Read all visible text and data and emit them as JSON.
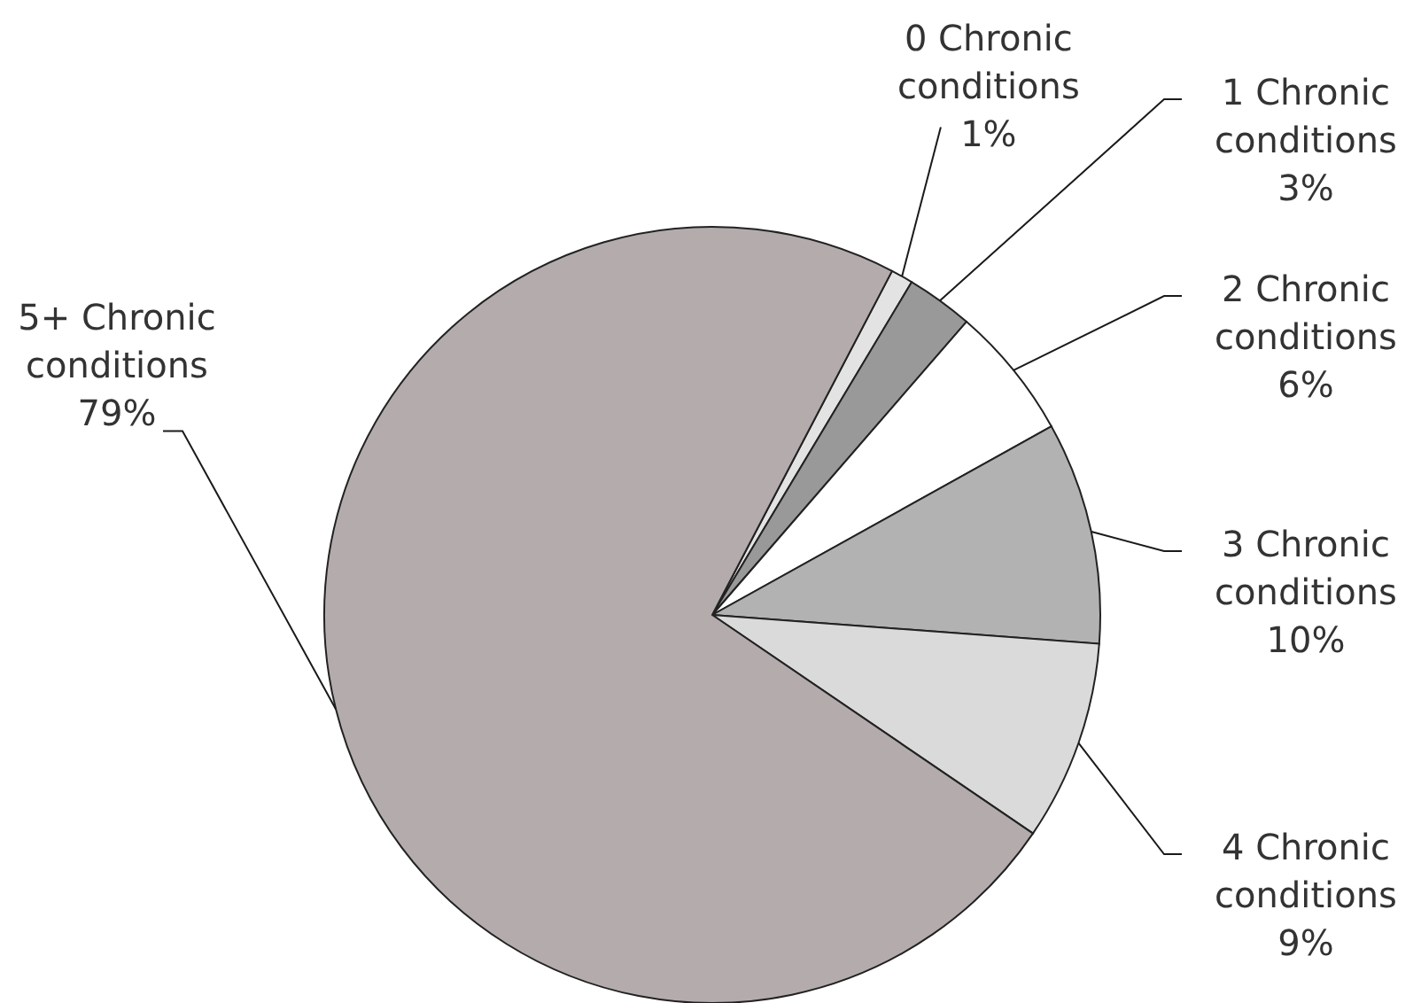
{
  "chart_data": {
    "type": "pie",
    "categories": [
      "0 Chronic conditions",
      "1 Chronic conditions",
      "2 Chronic conditions",
      "3 Chronic conditions",
      "4 Chronic conditions",
      "5+ Chronic conditions"
    ],
    "values": [
      1,
      3,
      6,
      10,
      9,
      79
    ],
    "value_labels": [
      "1%",
      "3%",
      "6%",
      "10%",
      "9%",
      "79%"
    ],
    "colors": [
      "#e3e3e3",
      "#999999",
      "#ffffff",
      "#b2b2b2",
      "#dadada",
      "#b4acac"
    ]
  }
}
